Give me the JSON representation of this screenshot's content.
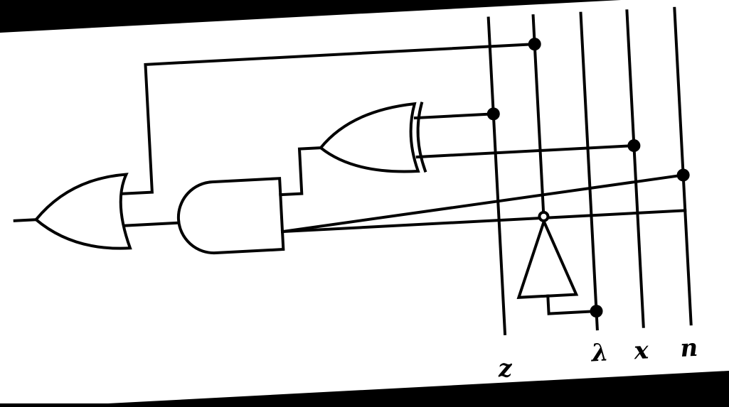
{
  "diagram": {
    "type": "logic-circuit",
    "background": "#000000",
    "paper_color": "#ffffff",
    "ink_color": "#000000",
    "input_labels": {
      "z": "z",
      "y": "λ",
      "x": "x",
      "n": "n"
    },
    "gates": [
      {
        "id": "or-gate",
        "kind": "OR"
      },
      {
        "id": "and-gate",
        "kind": "AND"
      },
      {
        "id": "xor-gate",
        "kind": "XOR"
      },
      {
        "id": "not-gate",
        "kind": "NOT"
      }
    ]
  }
}
